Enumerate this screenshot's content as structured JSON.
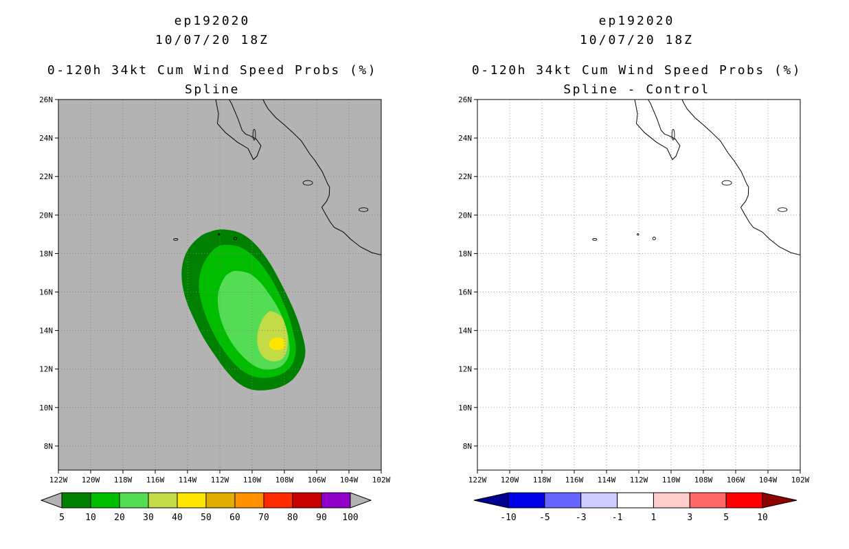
{
  "figure": {
    "background": "#ffffff"
  },
  "geo": {
    "coastlines": [
      {
        "name": "baja-california",
        "points": [
          [
            112.25,
            26.0
          ],
          [
            112.08,
            25.25
          ],
          [
            112.15,
            24.75
          ],
          [
            111.65,
            24.28
          ],
          [
            110.9,
            23.78
          ],
          [
            110.25,
            23.45
          ],
          [
            109.92,
            22.88
          ],
          [
            109.7,
            23.05
          ],
          [
            109.45,
            23.6
          ],
          [
            109.75,
            23.95
          ],
          [
            110.15,
            24.12
          ],
          [
            110.4,
            24.2
          ],
          [
            110.62,
            24.4
          ],
          [
            110.85,
            24.95
          ],
          [
            111.05,
            25.35
          ],
          [
            111.28,
            25.8
          ],
          [
            111.42,
            26.0
          ]
        ]
      },
      {
        "name": "mexico-mainland",
        "points": [
          [
            102.0,
            17.92
          ],
          [
            102.6,
            18.05
          ],
          [
            103.3,
            18.35
          ],
          [
            103.9,
            18.75
          ],
          [
            104.35,
            19.12
          ],
          [
            104.9,
            19.35
          ],
          [
            105.15,
            19.62
          ],
          [
            105.45,
            20.05
          ],
          [
            105.68,
            20.4
          ],
          [
            105.38,
            20.72
          ],
          [
            105.22,
            21.02
          ],
          [
            105.2,
            21.45
          ],
          [
            105.32,
            21.62
          ],
          [
            105.65,
            22.25
          ],
          [
            106.1,
            22.82
          ],
          [
            106.45,
            23.2
          ],
          [
            106.95,
            23.85
          ],
          [
            107.5,
            24.3
          ],
          [
            108.0,
            24.68
          ],
          [
            108.52,
            25.05
          ],
          [
            109.0,
            25.5
          ],
          [
            109.22,
            25.82
          ],
          [
            109.32,
            26.0
          ]
        ]
      }
    ],
    "islands": [
      {
        "name": "isla-clarion",
        "lon": 114.73,
        "lat": 18.73,
        "rx": 0.13,
        "ry": 0.05
      },
      {
        "name": "isla-socorro",
        "lon": 111.05,
        "lat": 18.78,
        "rx": 0.09,
        "ry": 0.07
      },
      {
        "name": "roca-partida",
        "lon": 112.05,
        "lat": 18.99,
        "rx": 0.05,
        "ry": 0.04
      },
      {
        "name": "isla-cerralvo",
        "lon": 109.87,
        "lat": 24.17,
        "rx": 0.08,
        "ry": 0.28
      },
      {
        "name": "islas-marias",
        "lon": 106.55,
        "lat": 21.67,
        "rx": 0.3,
        "ry": 0.12
      },
      {
        "name": "lake-chapala",
        "lon": 103.1,
        "lat": 20.28,
        "rx": 0.28,
        "ry": 0.1
      }
    ]
  },
  "chart_data": [
    {
      "type": "heatmap",
      "panel_id": "spline",
      "title": "ep192020",
      "date_line": "10/07/20 18Z",
      "subtitle": "0-120h 34kt Cum Wind Speed Probs (%)",
      "variant": "Spline",
      "background_color": "#b3b3b3",
      "grid_color": "#828282",
      "axes": {
        "lon_range_w": [
          122,
          102
        ],
        "lat_range_n": [
          6.75,
          26
        ],
        "grid_step_deg": 2,
        "lat_ticks": [
          {
            "value": 26,
            "label": "26N"
          },
          {
            "value": 24,
            "label": "24N"
          },
          {
            "value": 22,
            "label": "22N"
          },
          {
            "value": 20,
            "label": "20N"
          },
          {
            "value": 18,
            "label": "18N"
          },
          {
            "value": 16,
            "label": "16N"
          },
          {
            "value": 14,
            "label": "14N"
          },
          {
            "value": 12,
            "label": "12N"
          },
          {
            "value": 10,
            "label": "10N"
          },
          {
            "value": 8,
            "label": "8N"
          }
        ],
        "lon_ticks": [
          {
            "value": 122,
            "label": "122W"
          },
          {
            "value": 120,
            "label": "120W"
          },
          {
            "value": 118,
            "label": "118W"
          },
          {
            "value": 116,
            "label": "116W"
          },
          {
            "value": 114,
            "label": "114W"
          },
          {
            "value": 112,
            "label": "112W"
          },
          {
            "value": 110,
            "label": "110W"
          },
          {
            "value": 108,
            "label": "108W"
          },
          {
            "value": 106,
            "label": "106W"
          },
          {
            "value": 104,
            "label": "104W"
          },
          {
            "value": 102,
            "label": "102W"
          }
        ]
      },
      "contours": [
        {
          "level_pct": 5,
          "color": "#008000",
          "polygon_lon_lat": [
            [
              111.9,
              19.25
            ],
            [
              111.0,
              19.15
            ],
            [
              110.3,
              18.85
            ],
            [
              109.6,
              18.3
            ],
            [
              108.9,
              17.5
            ],
            [
              108.3,
              16.6
            ],
            [
              107.7,
              15.6
            ],
            [
              107.2,
              14.6
            ],
            [
              106.85,
              13.65
            ],
            [
              106.7,
              12.85
            ],
            [
              106.95,
              12.1
            ],
            [
              107.5,
              11.45
            ],
            [
              108.3,
              11.05
            ],
            [
              109.2,
              10.9
            ],
            [
              110.1,
              10.95
            ],
            [
              110.9,
              11.3
            ],
            [
              111.6,
              11.9
            ],
            [
              112.3,
              12.7
            ],
            [
              113.0,
              13.6
            ],
            [
              113.6,
              14.6
            ],
            [
              114.1,
              15.6
            ],
            [
              114.35,
              16.6
            ],
            [
              114.3,
              17.5
            ],
            [
              113.9,
              18.3
            ],
            [
              113.2,
              18.9
            ],
            [
              112.55,
              19.15
            ]
          ]
        },
        {
          "level_pct": 10,
          "color": "#00bd00",
          "polygon_lon_lat": [
            [
              111.6,
              18.45
            ],
            [
              110.8,
              18.35
            ],
            [
              110.1,
              18.0
            ],
            [
              109.4,
              17.4
            ],
            [
              108.75,
              16.6
            ],
            [
              108.2,
              15.7
            ],
            [
              107.75,
              14.8
            ],
            [
              107.45,
              13.9
            ],
            [
              107.3,
              13.1
            ],
            [
              107.45,
              12.35
            ],
            [
              107.95,
              11.85
            ],
            [
              108.65,
              11.6
            ],
            [
              109.5,
              11.55
            ],
            [
              110.3,
              11.75
            ],
            [
              111.0,
              12.2
            ],
            [
              111.7,
              12.9
            ],
            [
              112.3,
              13.7
            ],
            [
              112.8,
              14.6
            ],
            [
              113.15,
              15.5
            ],
            [
              113.3,
              16.4
            ],
            [
              113.1,
              17.3
            ],
            [
              112.65,
              17.95
            ],
            [
              112.15,
              18.35
            ]
          ]
        },
        {
          "level_pct": 20,
          "color": "#54dc54",
          "polygon_lon_lat": [
            [
              110.9,
              17.1
            ],
            [
              110.15,
              16.95
            ],
            [
              109.5,
              16.5
            ],
            [
              108.9,
              15.85
            ],
            [
              108.35,
              15.1
            ],
            [
              107.95,
              14.3
            ],
            [
              107.72,
              13.5
            ],
            [
              107.7,
              12.8
            ],
            [
              108.05,
              12.25
            ],
            [
              108.65,
              12.0
            ],
            [
              109.4,
              12.0
            ],
            [
              110.1,
              12.3
            ],
            [
              110.8,
              12.85
            ],
            [
              111.4,
              13.55
            ],
            [
              111.85,
              14.35
            ],
            [
              112.1,
              15.2
            ],
            [
              112.08,
              16.0
            ],
            [
              111.75,
              16.7
            ],
            [
              111.35,
              17.02
            ]
          ]
        },
        {
          "level_pct": 30,
          "color": "#c3db46",
          "polygon_lon_lat": [
            [
              108.8,
              15.0
            ],
            [
              108.2,
              14.75
            ],
            [
              107.95,
              14.3
            ],
            [
              107.8,
              13.7
            ],
            [
              107.82,
              13.1
            ],
            [
              108.05,
              12.6
            ],
            [
              108.55,
              12.4
            ],
            [
              109.1,
              12.5
            ],
            [
              109.5,
              12.85
            ],
            [
              109.68,
              13.4
            ],
            [
              109.62,
              14.0
            ],
            [
              109.35,
              14.6
            ],
            [
              109.05,
              14.9
            ]
          ]
        },
        {
          "level_pct": 40,
          "color": "#ffe600",
          "polygon_lon_lat": [
            [
              108.55,
              13.62
            ],
            [
              108.1,
              13.58
            ],
            [
              107.95,
              13.3
            ],
            [
              108.1,
              13.05
            ],
            [
              108.5,
              12.98
            ],
            [
              108.85,
              13.1
            ],
            [
              108.95,
              13.32
            ],
            [
              108.8,
              13.52
            ]
          ]
        }
      ],
      "colorbar": {
        "tick_labels": [
          "5",
          "10",
          "20",
          "30",
          "40",
          "50",
          "60",
          "70",
          "80",
          "90",
          "100"
        ],
        "box_colors": [
          "#008000",
          "#00bd00",
          "#54dc54",
          "#c3db46",
          "#ffe600",
          "#e0ae00",
          "#ff9000",
          "#ff2a00",
          "#c80000",
          "#9000c8"
        ],
        "under_arrow_color": "#b3b3b3",
        "over_arrow_color": "#b3b3b3"
      }
    },
    {
      "type": "heatmap",
      "panel_id": "spline-minus-control",
      "title": "ep192020",
      "date_line": "10/07/20 18Z",
      "subtitle": "0-120h 34kt Cum Wind Speed Probs (%)",
      "variant": "Spline - Control",
      "background_color": "#ffffff",
      "grid_color": "#9e9e9e",
      "axes": {
        "lon_range_w": [
          122,
          102
        ],
        "lat_range_n": [
          6.75,
          26
        ],
        "grid_step_deg": 2,
        "lat_ticks": [
          {
            "value": 26,
            "label": "26N"
          },
          {
            "value": 24,
            "label": "24N"
          },
          {
            "value": 22,
            "label": "22N"
          },
          {
            "value": 20,
            "label": "20N"
          },
          {
            "value": 18,
            "label": "18N"
          },
          {
            "value": 16,
            "label": "16N"
          },
          {
            "value": 14,
            "label": "14N"
          },
          {
            "value": 12,
            "label": "12N"
          },
          {
            "value": 10,
            "label": "10N"
          },
          {
            "value": 8,
            "label": "8N"
          }
        ],
        "lon_ticks": [
          {
            "value": 122,
            "label": "122W"
          },
          {
            "value": 120,
            "label": "120W"
          },
          {
            "value": 118,
            "label": "118W"
          },
          {
            "value": 116,
            "label": "116W"
          },
          {
            "value": 114,
            "label": "114W"
          },
          {
            "value": 112,
            "label": "112W"
          },
          {
            "value": 110,
            "label": "110W"
          },
          {
            "value": 108,
            "label": "108W"
          },
          {
            "value": 106,
            "label": "106W"
          },
          {
            "value": 104,
            "label": "104W"
          },
          {
            "value": 102,
            "label": "102W"
          }
        ]
      },
      "contours": [],
      "colorbar": {
        "tick_labels": [
          "-10",
          "-5",
          "-3",
          "-1",
          "1",
          "3",
          "5",
          "10"
        ],
        "box_colors": [
          "#0000e6",
          "#6666ff",
          "#ccccff",
          "#ffffff",
          "#ffcccc",
          "#ff6666",
          "#ff0000"
        ],
        "under_arrow_color": "#000091",
        "over_arrow_color": "#8c0000"
      }
    }
  ]
}
